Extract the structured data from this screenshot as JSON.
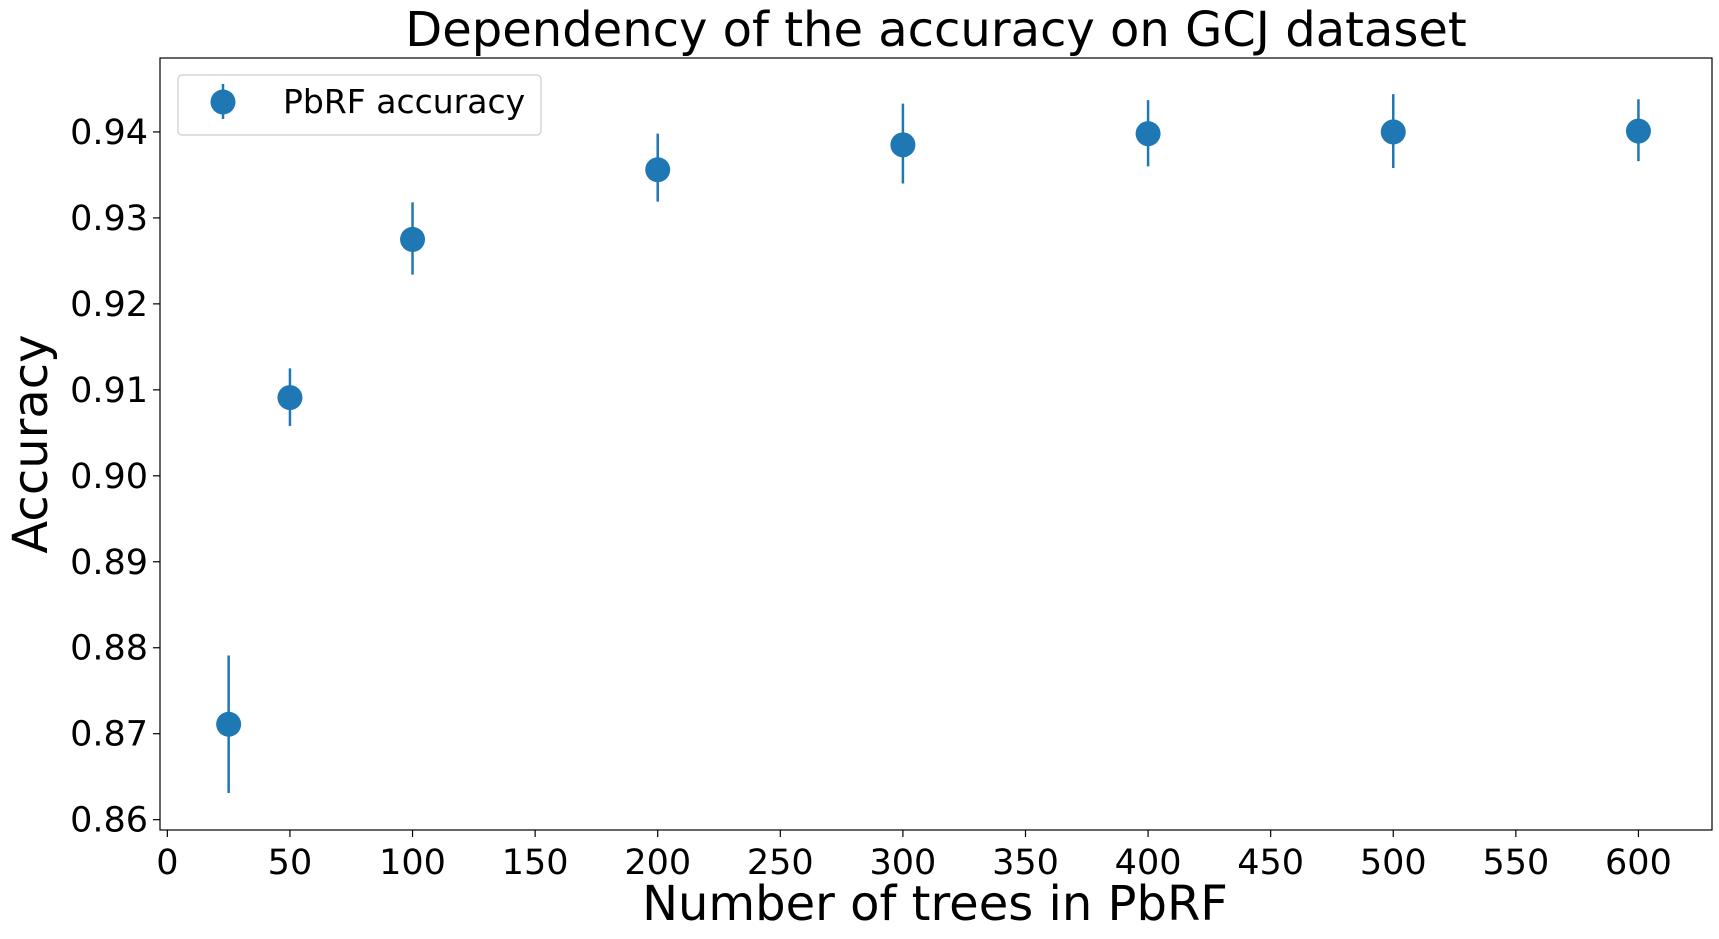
{
  "chart_data": {
    "type": "scatter",
    "title": "Dependency of the accuracy on GCJ dataset",
    "xlabel": "Number of trees in PbRF",
    "ylabel": "Accuracy",
    "xlim": [
      -3,
      630
    ],
    "ylim": [
      0.8588,
      0.9486
    ],
    "xticks": [
      0,
      50,
      100,
      150,
      200,
      250,
      300,
      350,
      400,
      450,
      500,
      550,
      600
    ],
    "xtick_labels": [
      "0",
      "50",
      "100",
      "150",
      "200",
      "250",
      "300",
      "350",
      "400",
      "450",
      "500",
      "550",
      "600"
    ],
    "yticks": [
      0.86,
      0.87,
      0.88,
      0.89,
      0.9,
      0.91,
      0.92,
      0.93,
      0.94
    ],
    "ytick_labels": [
      "0.86",
      "0.87",
      "0.88",
      "0.89",
      "0.90",
      "0.91",
      "0.92",
      "0.93",
      "0.94"
    ],
    "grid": false,
    "legend_position": "top-left",
    "series": [
      {
        "name": "PbRF accuracy",
        "color": "#1f77b4",
        "marker": "circle",
        "x": [
          25,
          50,
          100,
          200,
          300,
          400,
          500,
          600
        ],
        "y": [
          0.8711,
          0.9091,
          0.9275,
          0.9356,
          0.9385,
          0.9398,
          0.94,
          0.9401
        ],
        "err_low": [
          0.8631,
          0.9058,
          0.9234,
          0.9319,
          0.934,
          0.936,
          0.9358,
          0.9366
        ],
        "err_high": [
          0.8791,
          0.9125,
          0.9318,
          0.9398,
          0.9433,
          0.9437,
          0.9444,
          0.9438
        ]
      }
    ]
  }
}
